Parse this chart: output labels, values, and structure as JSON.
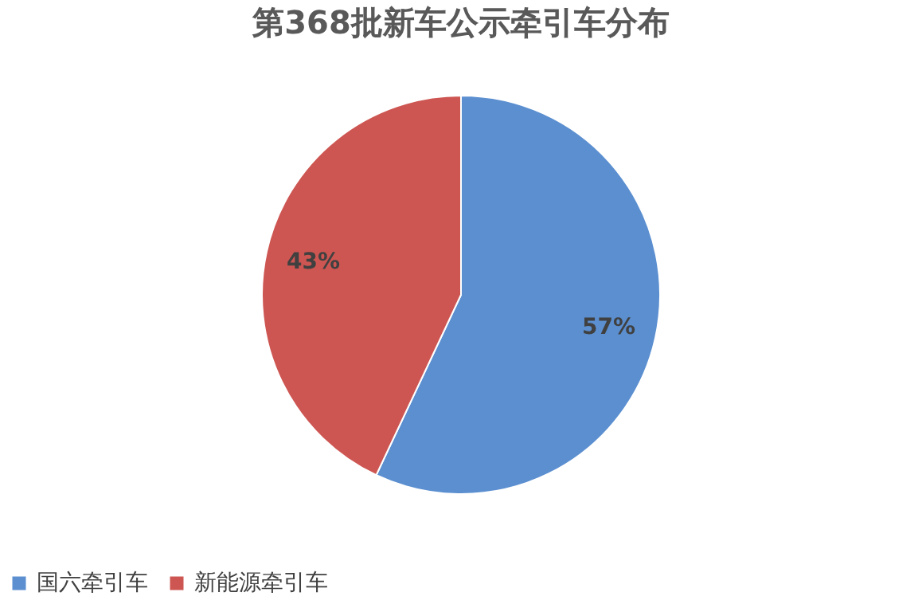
{
  "chart_data": {
    "type": "pie",
    "title": "第368批新车公示牵引车分布",
    "categories": [
      "国六牵引车",
      "新能源牵引车"
    ],
    "values": [
      57,
      43
    ],
    "colors": [
      "#5b8fd0",
      "#cd5652"
    ],
    "value_labels": [
      "57%",
      "43%"
    ],
    "legend": "bottom"
  }
}
